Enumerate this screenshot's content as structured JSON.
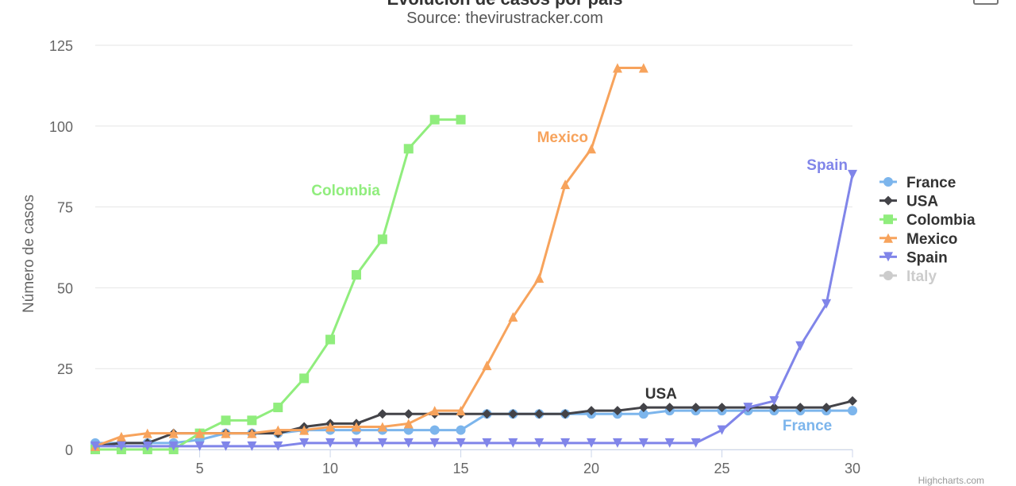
{
  "chart_data": {
    "type": "line",
    "title": "",
    "subtitle": "Source: thevirustracker.com",
    "xlabel": "",
    "ylabel": "Número de casos",
    "xlim": [
      1,
      30
    ],
    "ylim": [
      0,
      125
    ],
    "x_ticks": [
      5,
      10,
      15,
      20,
      25,
      30
    ],
    "y_ticks": [
      0,
      25,
      50,
      75,
      100,
      125
    ],
    "legend_position": "right",
    "series": [
      {
        "name": "France",
        "color": "#7cb5ec",
        "marker": "circle",
        "visible": true,
        "x": [
          1,
          2,
          3,
          4,
          5,
          6,
          7,
          8,
          9,
          10,
          11,
          12,
          13,
          14,
          15,
          16,
          17,
          18,
          19,
          20,
          21,
          22,
          23,
          24,
          25,
          26,
          27,
          28,
          29,
          30
        ],
        "values": [
          2,
          2,
          2,
          2,
          3,
          5,
          5,
          5,
          6,
          6,
          6,
          6,
          6,
          6,
          6,
          11,
          11,
          11,
          11,
          11,
          11,
          11,
          12,
          12,
          12,
          12,
          12,
          12,
          12,
          12
        ],
        "label": "France",
        "label_anchor": 28
      },
      {
        "name": "USA",
        "color": "#434348",
        "marker": "diamond",
        "visible": true,
        "x": [
          1,
          2,
          3,
          4,
          5,
          6,
          7,
          8,
          9,
          10,
          11,
          12,
          13,
          14,
          15,
          16,
          17,
          18,
          19,
          20,
          21,
          22,
          23,
          24,
          25,
          26,
          27,
          28,
          29,
          30
        ],
        "values": [
          1,
          2,
          2,
          5,
          5,
          5,
          5,
          5,
          7,
          8,
          8,
          11,
          11,
          11,
          11,
          11,
          11,
          11,
          11,
          12,
          12,
          13,
          13,
          13,
          13,
          13,
          13,
          13,
          13,
          15
        ],
        "label": "USA",
        "label_anchor": 22
      },
      {
        "name": "Colombia",
        "color": "#90ed7d",
        "marker": "square",
        "visible": true,
        "x": [
          1,
          2,
          3,
          4,
          5,
          6,
          7,
          8,
          9,
          10,
          11,
          12,
          13,
          14,
          15
        ],
        "values": [
          0,
          0,
          0,
          0,
          5,
          9,
          9,
          13,
          22,
          34,
          54,
          65,
          93,
          102,
          102
        ],
        "label": "Colombia",
        "label_anchor": 12
      },
      {
        "name": "Mexico",
        "color": "#f7a35c",
        "marker": "triangle",
        "visible": true,
        "x": [
          1,
          2,
          3,
          4,
          5,
          6,
          7,
          8,
          9,
          10,
          11,
          12,
          13,
          14,
          15,
          16,
          17,
          18,
          19,
          20,
          21,
          22
        ],
        "values": [
          1,
          4,
          5,
          5,
          5,
          5,
          5,
          6,
          6,
          7,
          7,
          7,
          8,
          12,
          12,
          26,
          41,
          53,
          82,
          93,
          118,
          118
        ],
        "label": "Mexico",
        "label_anchor": 19
      },
      {
        "name": "Spain",
        "color": "#8085e9",
        "marker": "triangle-down",
        "visible": true,
        "x": [
          1,
          2,
          3,
          4,
          5,
          6,
          7,
          8,
          9,
          10,
          11,
          12,
          13,
          14,
          15,
          16,
          17,
          18,
          19,
          20,
          21,
          22,
          23,
          24,
          25,
          26,
          27,
          28,
          29,
          30
        ],
        "values": [
          1,
          1,
          1,
          1,
          1,
          1,
          1,
          1,
          2,
          2,
          2,
          2,
          2,
          2,
          2,
          2,
          2,
          2,
          2,
          2,
          2,
          2,
          2,
          2,
          6,
          13,
          15,
          32,
          45,
          85
        ],
        "label": "Spain",
        "label_anchor": 30
      },
      {
        "name": "Italy",
        "color": "#cccccc",
        "marker": "circle",
        "visible": false,
        "x": [],
        "values": [],
        "label": ""
      }
    ]
  },
  "page": {
    "title": "Evolución de casos por país",
    "credits": "Highcharts.com"
  }
}
